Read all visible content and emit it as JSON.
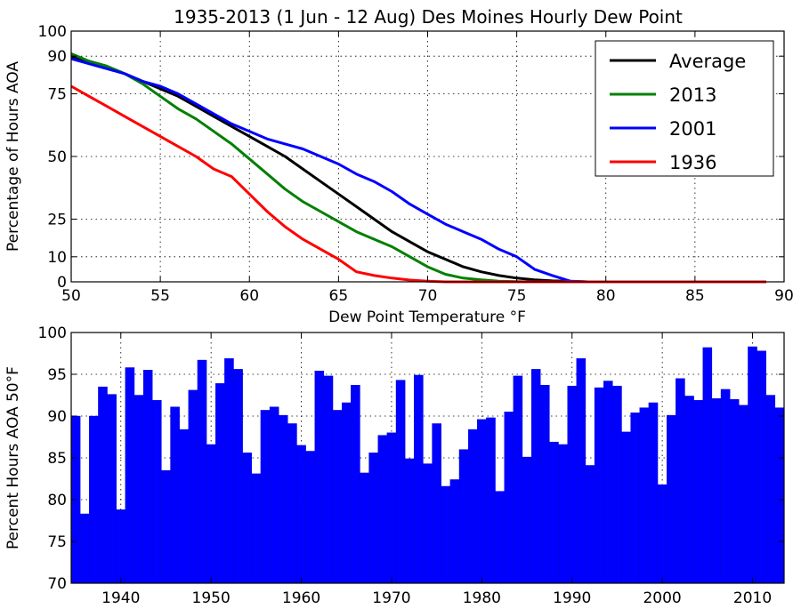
{
  "chart_data": [
    {
      "type": "line",
      "title": "1935-2013 (1 Jun - 12 Aug) Des Moines Hourly Dew Point",
      "xlabel": "Dew Point Temperature °F",
      "ylabel": "Percentage of Hours AOA",
      "xlim": [
        50,
        90
      ],
      "ylim": [
        0,
        100
      ],
      "xticks": [
        50,
        55,
        60,
        65,
        70,
        75,
        80,
        85,
        90
      ],
      "yticks": [
        0,
        10,
        25,
        50,
        75,
        90,
        100
      ],
      "grid": true,
      "legend_position": "top-right",
      "x": [
        50,
        51,
        52,
        53,
        54,
        55,
        56,
        57,
        58,
        59,
        60,
        61,
        62,
        63,
        64,
        65,
        66,
        67,
        68,
        69,
        70,
        71,
        72,
        73,
        74,
        75,
        76,
        77,
        78,
        79,
        80,
        81,
        82,
        83,
        84,
        85,
        86,
        87,
        88,
        89
      ],
      "series": [
        {
          "name": "Average",
          "color": "#000000",
          "values": [
            90,
            88,
            86,
            83,
            80,
            77,
            74,
            70,
            66,
            62,
            58,
            54,
            50,
            45,
            40,
            35,
            30,
            25,
            20,
            16,
            12,
            9,
            6,
            4,
            2.5,
            1.5,
            0.8,
            0.4,
            0.2,
            0,
            0,
            0,
            0,
            0,
            0,
            0,
            0,
            0,
            0,
            0
          ]
        },
        {
          "name": "2013",
          "color": "#008000",
          "values": [
            91,
            88,
            86,
            83,
            79,
            74,
            69,
            65,
            60,
            55,
            49,
            43,
            37,
            32,
            28,
            24,
            20,
            17,
            14,
            10,
            6,
            3,
            1.5,
            0.8,
            0.3,
            0.1,
            0,
            0,
            0,
            0,
            0,
            0,
            0,
            0,
            0,
            0,
            0,
            0,
            0,
            0
          ]
        },
        {
          "name": "2001",
          "color": "#0000ff",
          "values": [
            89,
            87,
            85,
            83,
            80,
            78,
            75,
            71,
            67,
            63,
            60,
            57,
            55,
            53,
            50,
            47,
            43,
            40,
            36,
            31,
            27,
            23,
            20,
            17,
            13,
            10,
            5,
            2.5,
            0.3,
            0,
            0,
            0,
            0,
            0,
            0,
            0,
            0,
            0,
            0,
            0
          ]
        },
        {
          "name": "1936",
          "color": "#ff0000",
          "values": [
            78,
            74,
            70,
            66,
            62,
            58,
            54,
            50,
            45,
            42,
            35,
            28,
            22,
            17,
            13,
            9,
            4,
            2.5,
            1.5,
            0.7,
            0.3,
            0,
            0,
            0,
            0,
            0,
            0,
            0,
            0,
            0,
            0,
            0,
            0,
            0,
            0,
            0,
            0,
            0,
            0,
            0
          ]
        }
      ]
    },
    {
      "type": "bar",
      "ylabel": "Percent Hours AOA 50°F",
      "xlim": [
        1934.5,
        2013.5
      ],
      "ylim": [
        70,
        100
      ],
      "xticks": [
        1940,
        1950,
        1960,
        1970,
        1980,
        1990,
        2000,
        2010
      ],
      "yticks": [
        70,
        75,
        80,
        85,
        90,
        95,
        100
      ],
      "grid": true,
      "bar_color": "#0000ff",
      "categories": [
        1935,
        1936,
        1937,
        1938,
        1939,
        1940,
        1941,
        1942,
        1943,
        1944,
        1945,
        1946,
        1947,
        1948,
        1949,
        1950,
        1951,
        1952,
        1953,
        1954,
        1955,
        1956,
        1957,
        1958,
        1959,
        1960,
        1961,
        1962,
        1963,
        1964,
        1965,
        1966,
        1967,
        1968,
        1969,
        1970,
        1971,
        1972,
        1973,
        1974,
        1975,
        1976,
        1977,
        1978,
        1979,
        1980,
        1981,
        1982,
        1983,
        1984,
        1985,
        1986,
        1987,
        1988,
        1989,
        1990,
        1991,
        1992,
        1993,
        1994,
        1995,
        1996,
        1997,
        1998,
        1999,
        2000,
        2001,
        2002,
        2003,
        2004,
        2005,
        2006,
        2007,
        2008,
        2009,
        2010,
        2011,
        2012,
        2013
      ],
      "values": [
        90.0,
        78.3,
        90.0,
        93.5,
        92.6,
        78.8,
        95.8,
        92.5,
        95.5,
        91.9,
        83.5,
        91.1,
        88.4,
        93.1,
        96.7,
        86.6,
        93.9,
        96.9,
        95.6,
        85.6,
        83.1,
        90.7,
        91.1,
        90.1,
        89.1,
        86.5,
        85.8,
        95.4,
        94.8,
        90.7,
        91.6,
        93.7,
        83.2,
        85.6,
        87.7,
        88.0,
        94.3,
        84.9,
        94.9,
        84.3,
        89.1,
        81.6,
        82.4,
        86.0,
        88.4,
        89.6,
        89.8,
        81.0,
        90.5,
        94.8,
        85.1,
        95.6,
        93.7,
        86.9,
        86.6,
        93.6,
        96.9,
        84.1,
        93.4,
        94.2,
        93.6,
        88.1,
        90.4,
        91.0,
        91.6,
        81.8,
        90.1,
        94.5,
        92.4,
        91.9,
        98.2,
        92.1,
        93.2,
        92.0,
        91.3,
        98.3,
        97.8,
        92.5,
        91.0
      ]
    }
  ]
}
